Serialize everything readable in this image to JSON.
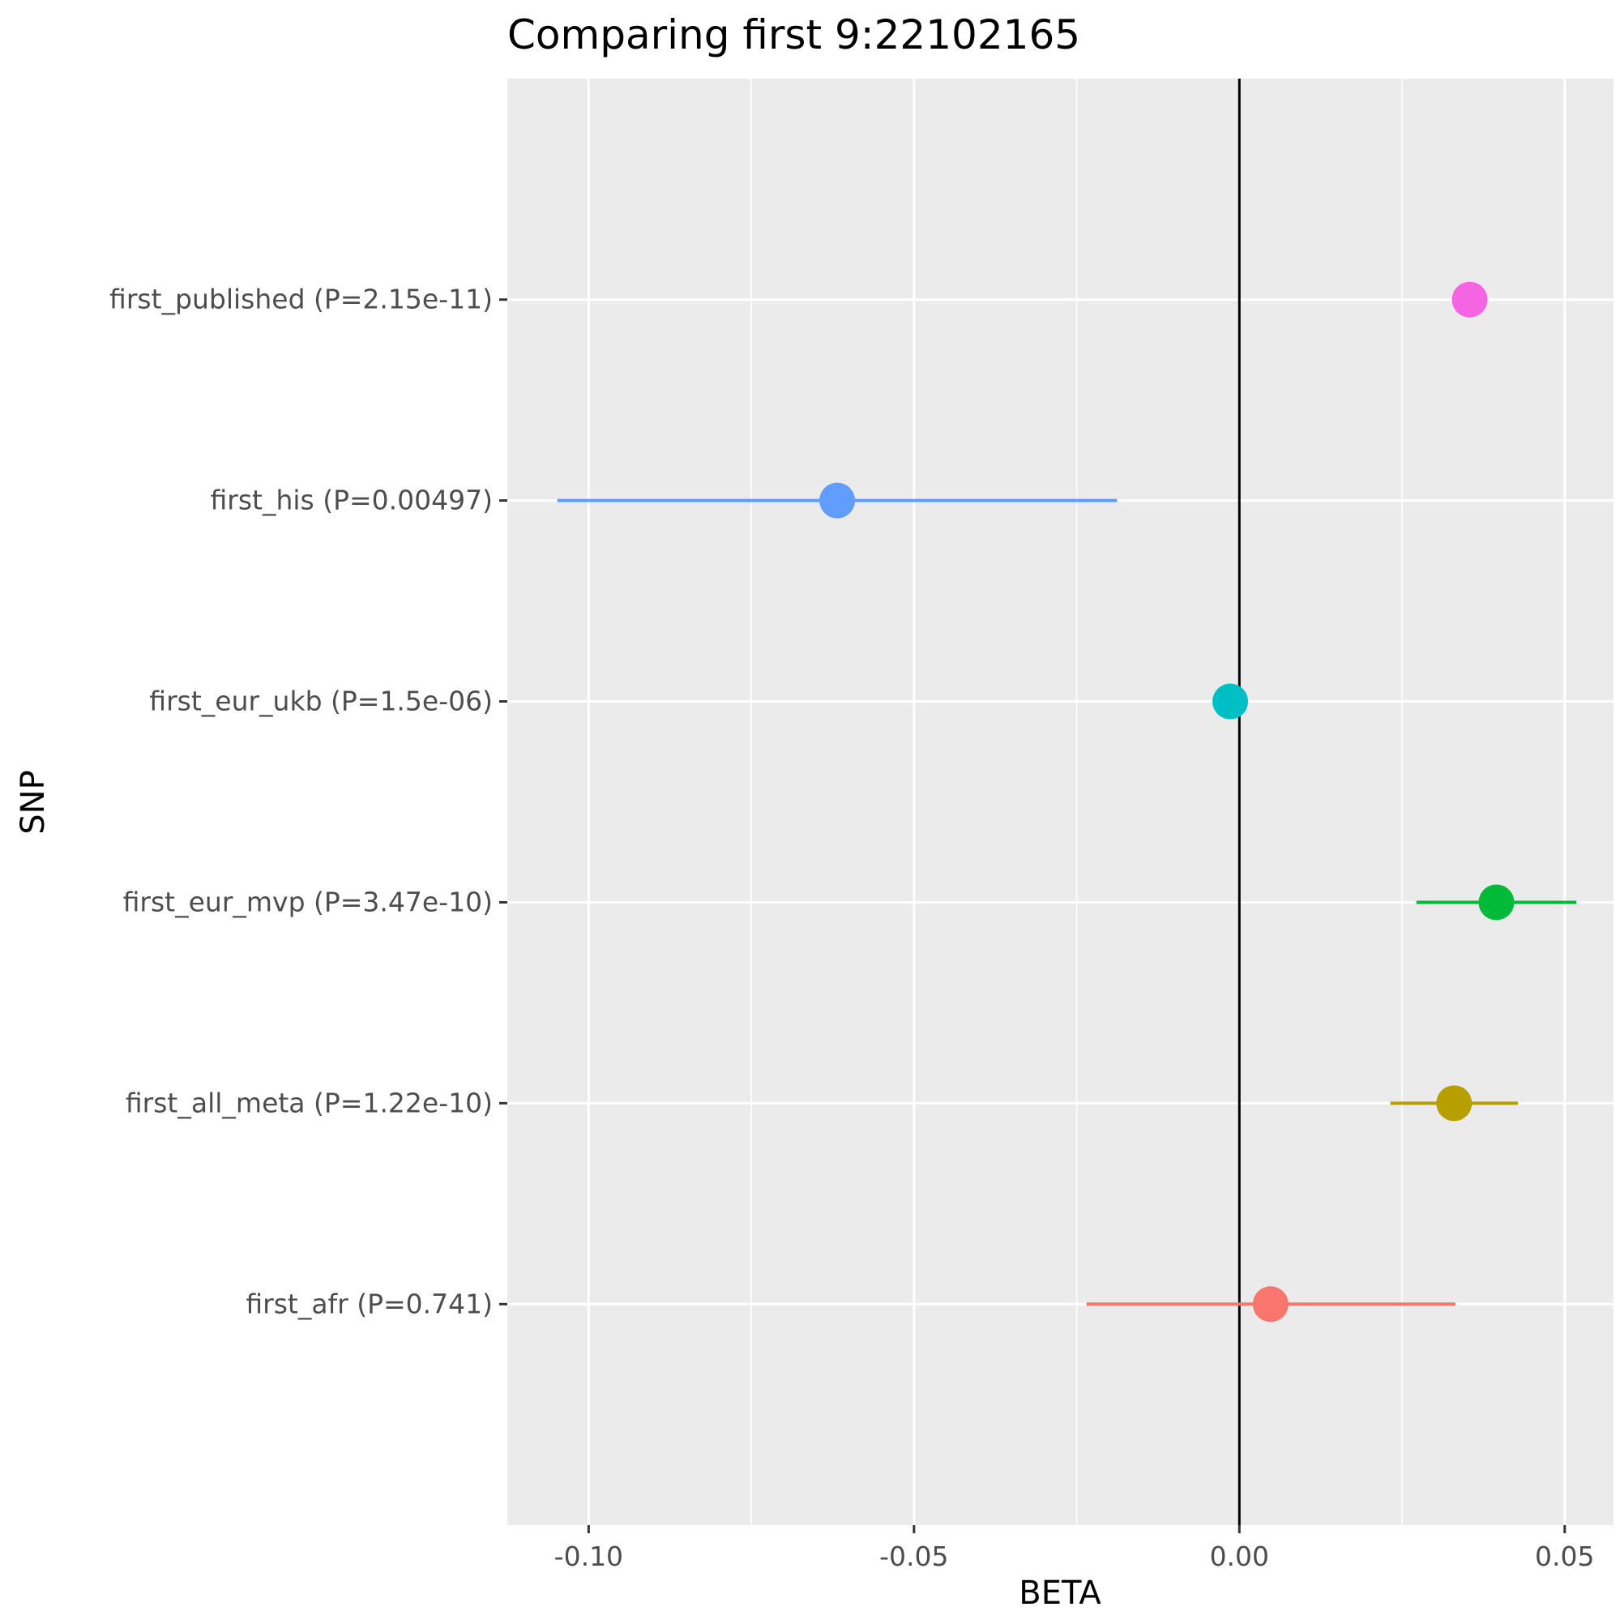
{
  "chart_data": {
    "type": "scatter",
    "title": "Comparing first 9:22102165",
    "xlabel": "BETA",
    "ylabel": "SNP",
    "xlim": [
      -0.1125,
      0.0575
    ],
    "x_ticks": [
      {
        "value": -0.1,
        "label": "-0.10"
      },
      {
        "value": -0.05,
        "label": "-0.05"
      },
      {
        "value": 0.0,
        "label": "0.00"
      },
      {
        "value": 0.05,
        "label": "0.05"
      }
    ],
    "reference_line_x": 0,
    "grid": true,
    "panel_background": "#ebebeb",
    "points": [
      {
        "label": "first_afr (P=0.741)",
        "beta": 0.0048,
        "lower": -0.0235,
        "upper": 0.0332,
        "color": "#f8766d"
      },
      {
        "label": "first_all_meta (P=1.22e-10)",
        "beta": 0.033,
        "lower": 0.0232,
        "upper": 0.0428,
        "color": "#b79f00"
      },
      {
        "label": "first_eur_mvp (P=3.47e-10)",
        "beta": 0.0395,
        "lower": 0.0272,
        "upper": 0.0518,
        "color": "#00ba38"
      },
      {
        "label": "first_eur_ukb (P=1.5e-06)",
        "beta": -0.0014,
        "lower": -0.0014,
        "upper": -0.0014,
        "color": "#00bfc4"
      },
      {
        "label": "first_his (P=0.00497)",
        "beta": -0.0618,
        "lower": -0.1048,
        "upper": -0.0188,
        "color": "#619cff"
      },
      {
        "label": "first_published (P=2.15e-11)",
        "beta": 0.0354,
        "lower": 0.0354,
        "upper": 0.0354,
        "color": "#f564e3"
      }
    ]
  }
}
